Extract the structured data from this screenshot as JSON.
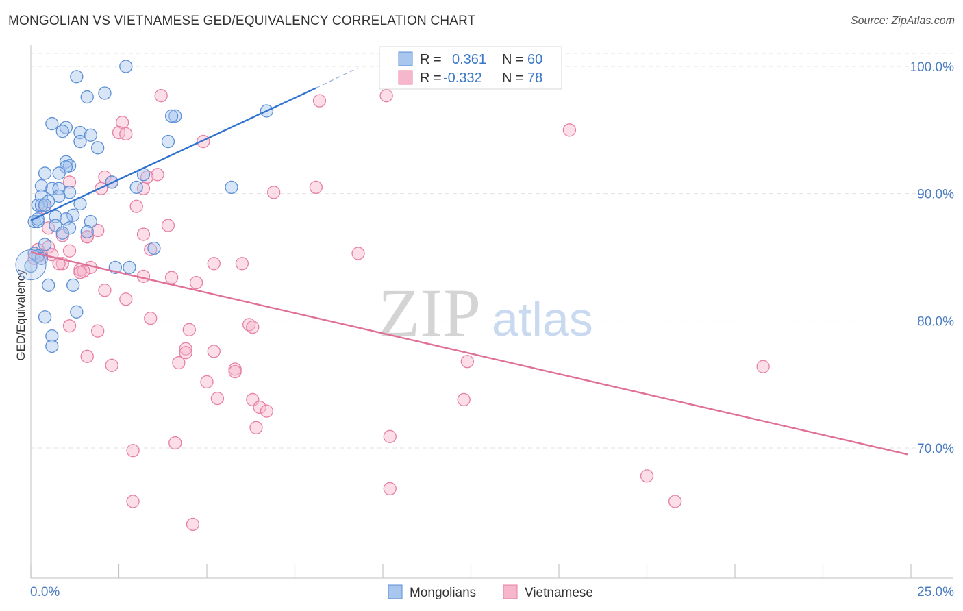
{
  "header": {
    "title": "MONGOLIAN VS VIETNAMESE GED/EQUIVALENCY CORRELATION CHART",
    "source": "Source: ZipAtlas.com"
  },
  "watermark": {
    "zip": "ZIP",
    "atlas": "atlas"
  },
  "stats_legend": {
    "r_label": "R =",
    "n_label": "N =",
    "rows": [
      {
        "r": "0.361",
        "n": "60"
      },
      {
        "r": "-0.332",
        "n": "78"
      }
    ]
  },
  "chart_data": {
    "type": "scatter",
    "title": "MONGOLIAN VS VIETNAMESE GED/EQUIVALENCY CORRELATION CHART",
    "xlabel": "",
    "ylabel": "GED/Equivalency",
    "xlim": [
      0,
      25
    ],
    "ylim": [
      62,
      102
    ],
    "y_ticks": [
      {
        "value": 70,
        "label": "70.0%"
      },
      {
        "value": 80,
        "label": "80.0%"
      },
      {
        "value": 90,
        "label": "90.0%"
      },
      {
        "value": 100,
        "label": "100.0%"
      }
    ],
    "x_tick_labels": [
      {
        "value": 0,
        "label": "0.0%"
      },
      {
        "value": 25,
        "label": "25.0%"
      }
    ],
    "grid": true,
    "legend_position": "bottom-center",
    "colors": {
      "blue_fill": "#a9c6ee",
      "blue_stroke": "#5b8fd6",
      "blue_line": "#2f72cf",
      "pink_fill": "#f6b6cb",
      "pink_stroke": "#e87fa3",
      "pink_line": "#e07098"
    },
    "series": [
      {
        "name": "Mongolians",
        "color": "blue",
        "trend": {
          "x_start": 0,
          "y_start": 87.9,
          "x_end": 8.1,
          "y_end": 98.3,
          "dash_x_end": 9.3,
          "dash_y_end": 99.9
        },
        "points": [
          [
            2.7,
            100.0
          ],
          [
            1.3,
            99.2
          ],
          [
            1.6,
            97.6
          ],
          [
            2.1,
            97.9
          ],
          [
            4.1,
            96.1
          ],
          [
            4.0,
            96.1
          ],
          [
            6.7,
            96.5
          ],
          [
            0.6,
            95.5
          ],
          [
            1.0,
            95.2
          ],
          [
            0.9,
            94.9
          ],
          [
            1.4,
            94.8
          ],
          [
            1.7,
            94.6
          ],
          [
            1.4,
            94.1
          ],
          [
            3.9,
            94.1
          ],
          [
            1.9,
            93.6
          ],
          [
            1.0,
            92.5
          ],
          [
            1.1,
            92.2
          ],
          [
            1.0,
            92.1
          ],
          [
            0.4,
            91.6
          ],
          [
            0.8,
            91.6
          ],
          [
            3.2,
            91.5
          ],
          [
            2.3,
            90.9
          ],
          [
            0.3,
            90.6
          ],
          [
            0.6,
            90.4
          ],
          [
            0.8,
            90.4
          ],
          [
            3.0,
            90.5
          ],
          [
            5.7,
            90.5
          ],
          [
            1.1,
            90.1
          ],
          [
            0.3,
            89.8
          ],
          [
            0.8,
            89.8
          ],
          [
            0.5,
            89.4
          ],
          [
            0.2,
            89.1
          ],
          [
            0.3,
            89.1
          ],
          [
            0.4,
            89.1
          ],
          [
            1.4,
            89.2
          ],
          [
            0.7,
            88.2
          ],
          [
            1.2,
            88.3
          ],
          [
            1.0,
            88.0
          ],
          [
            0.1,
            87.8
          ],
          [
            0.2,
            87.8
          ],
          [
            0.7,
            87.5
          ],
          [
            1.1,
            87.3
          ],
          [
            1.7,
            87.8
          ],
          [
            0.9,
            86.9
          ],
          [
            1.6,
            87.0
          ],
          [
            0.4,
            86.0
          ],
          [
            3.5,
            85.7
          ],
          [
            0.1,
            85.3
          ],
          [
            0.2,
            85.1
          ],
          [
            2.4,
            84.2
          ],
          [
            2.8,
            84.2
          ],
          [
            0.0,
            84.3
          ],
          [
            0.5,
            82.8
          ],
          [
            1.2,
            82.8
          ],
          [
            1.3,
            80.7
          ],
          [
            0.4,
            80.3
          ],
          [
            0.6,
            78.8
          ],
          [
            0.6,
            78.0
          ],
          [
            0.3,
            84.9
          ],
          [
            0.2,
            88.0
          ]
        ]
      },
      {
        "name": "Vietnamese",
        "color": "pink",
        "trend": {
          "x_start": 0,
          "y_start": 85.4,
          "x_end": 24.9,
          "y_end": 69.5
        },
        "points": [
          [
            3.7,
            97.7
          ],
          [
            10.1,
            97.7
          ],
          [
            8.2,
            97.3
          ],
          [
            15.3,
            95.0
          ],
          [
            2.6,
            95.6
          ],
          [
            2.5,
            94.8
          ],
          [
            2.7,
            94.7
          ],
          [
            4.9,
            94.1
          ],
          [
            3.6,
            91.5
          ],
          [
            2.1,
            91.3
          ],
          [
            3.3,
            91.3
          ],
          [
            1.1,
            90.9
          ],
          [
            2.3,
            90.9
          ],
          [
            3.2,
            90.4
          ],
          [
            2.0,
            90.4
          ],
          [
            8.1,
            90.5
          ],
          [
            6.9,
            90.1
          ],
          [
            3.0,
            89.0
          ],
          [
            0.4,
            88.9
          ],
          [
            0.5,
            87.3
          ],
          [
            3.9,
            87.5
          ],
          [
            1.9,
            87.1
          ],
          [
            3.2,
            86.8
          ],
          [
            1.6,
            86.6
          ],
          [
            0.9,
            86.7
          ],
          [
            0.5,
            85.8
          ],
          [
            1.1,
            85.5
          ],
          [
            0.2,
            85.6
          ],
          [
            3.4,
            85.6
          ],
          [
            0.6,
            85.2
          ],
          [
            9.3,
            85.3
          ],
          [
            0.1,
            84.9
          ],
          [
            0.9,
            84.5
          ],
          [
            5.2,
            84.5
          ],
          [
            6.0,
            84.5
          ],
          [
            1.7,
            84.2
          ],
          [
            1.4,
            84.0
          ],
          [
            1.5,
            83.9
          ],
          [
            1.4,
            83.8
          ],
          [
            3.2,
            83.5
          ],
          [
            4.0,
            83.4
          ],
          [
            4.7,
            83.0
          ],
          [
            2.1,
            82.4
          ],
          [
            2.7,
            81.7
          ],
          [
            3.4,
            80.2
          ],
          [
            1.1,
            79.6
          ],
          [
            6.2,
            79.7
          ],
          [
            6.3,
            79.5
          ],
          [
            4.5,
            79.3
          ],
          [
            1.9,
            79.2
          ],
          [
            4.4,
            77.8
          ],
          [
            5.2,
            77.6
          ],
          [
            4.4,
            77.5
          ],
          [
            1.6,
            77.2
          ],
          [
            4.2,
            76.7
          ],
          [
            12.4,
            76.8
          ],
          [
            2.3,
            76.5
          ],
          [
            5.8,
            76.2
          ],
          [
            20.8,
            76.4
          ],
          [
            5.8,
            76.0
          ],
          [
            5.0,
            75.2
          ],
          [
            5.3,
            73.9
          ],
          [
            6.3,
            73.8
          ],
          [
            12.3,
            73.8
          ],
          [
            6.5,
            73.2
          ],
          [
            6.7,
            72.9
          ],
          [
            6.4,
            71.6
          ],
          [
            10.2,
            70.9
          ],
          [
            4.1,
            70.4
          ],
          [
            2.9,
            69.8
          ],
          [
            10.2,
            66.8
          ],
          [
            17.5,
            67.8
          ],
          [
            2.9,
            65.8
          ],
          [
            18.3,
            65.8
          ],
          [
            4.6,
            64.0
          ],
          [
            1.6,
            86.6
          ],
          [
            0.8,
            84.5
          ],
          [
            0.3,
            85.2
          ]
        ]
      }
    ]
  },
  "bottom_legend": {
    "items": [
      {
        "label": "Mongolians"
      },
      {
        "label": "Vietnamese"
      }
    ]
  }
}
